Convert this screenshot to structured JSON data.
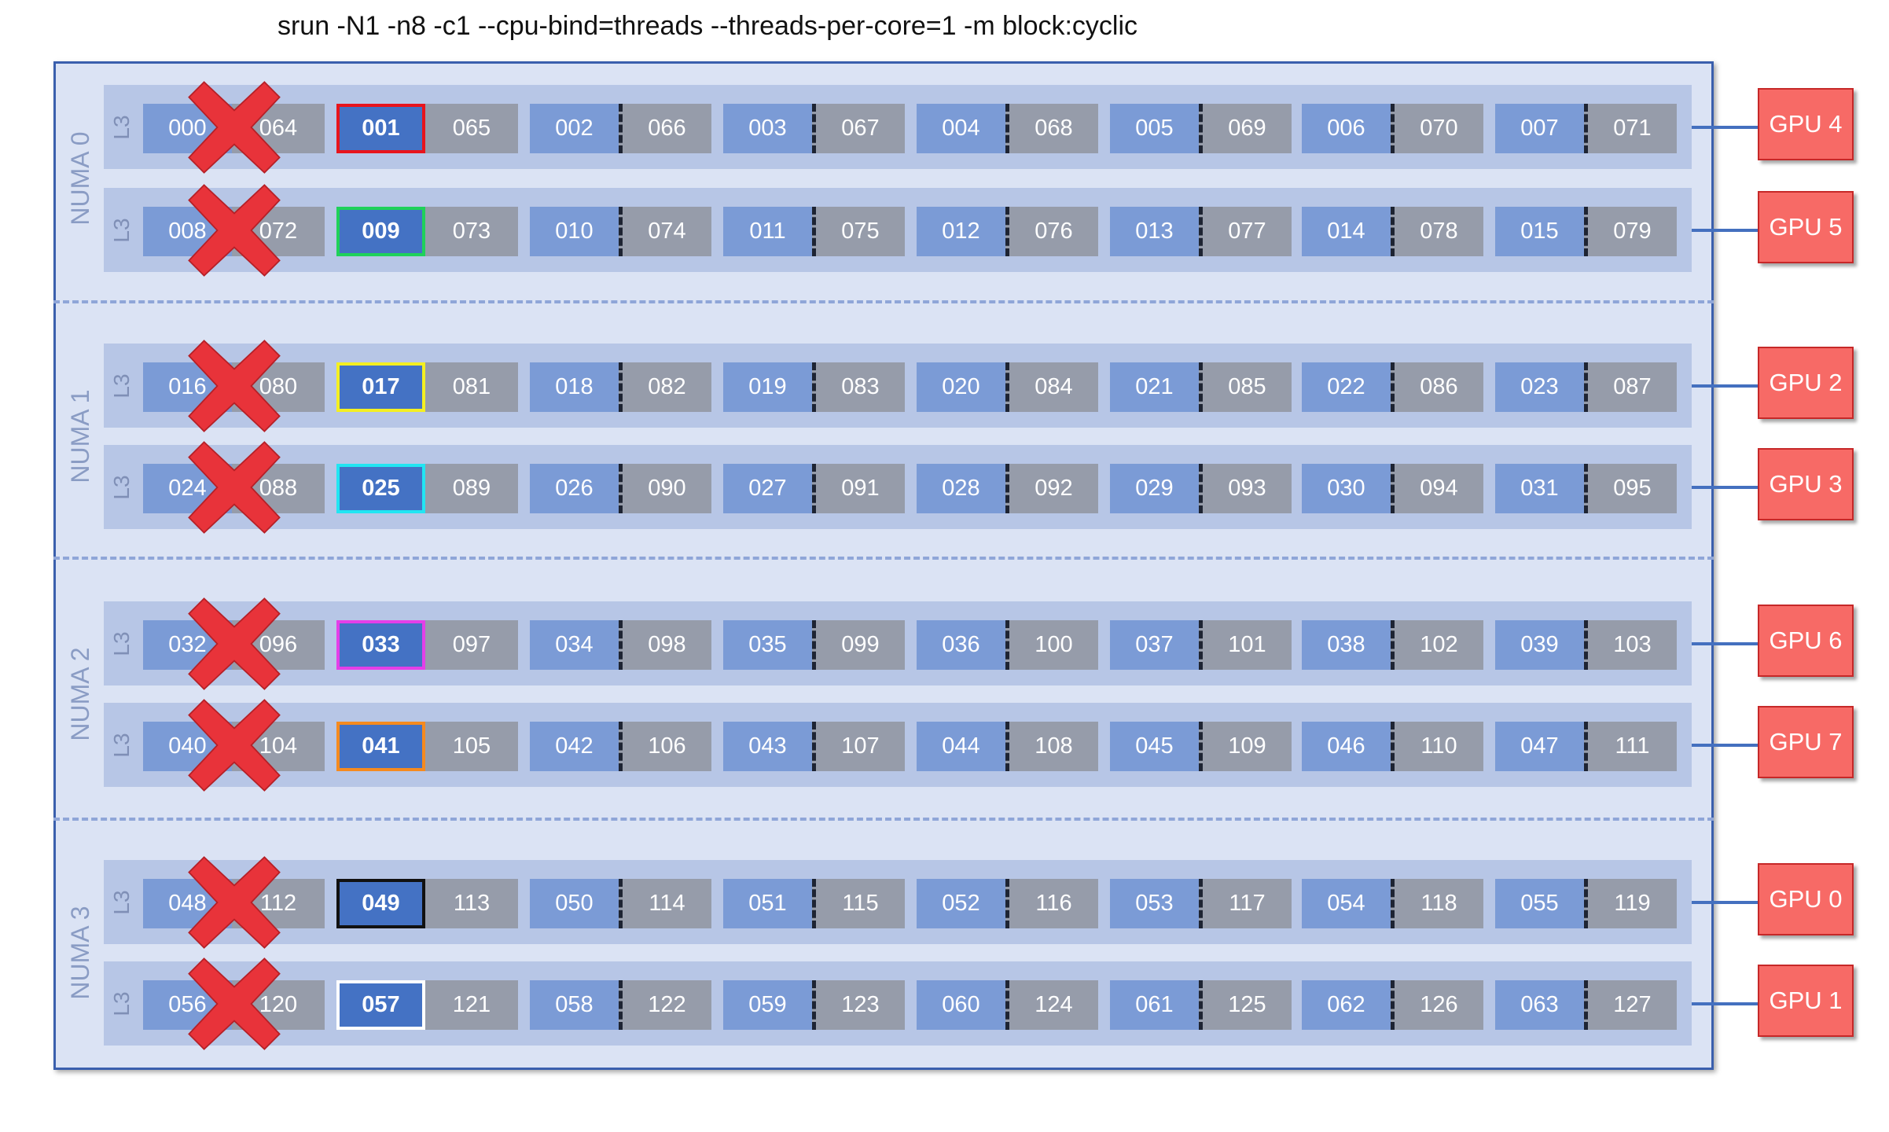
{
  "title": "srun -N1 -n8 -c1 --cpu-bind=threads --threads-per-core=1 -m block:cyclic",
  "l3_label": "L3",
  "numa_domains": [
    {
      "label": "NUMA 0",
      "l3_rows": [
        {
          "gpu": "GPU 4",
          "selected_color": "#e8141c",
          "cores": [
            [
              "000",
              "064"
            ],
            [
              "001",
              "065"
            ],
            [
              "002",
              "066"
            ],
            [
              "003",
              "067"
            ],
            [
              "004",
              "068"
            ],
            [
              "005",
              "069"
            ],
            [
              "006",
              "070"
            ],
            [
              "007",
              "071"
            ]
          ]
        },
        {
          "gpu": "GPU 5",
          "selected_color": "#1fd15a",
          "cores": [
            [
              "008",
              "072"
            ],
            [
              "009",
              "073"
            ],
            [
              "010",
              "074"
            ],
            [
              "011",
              "075"
            ],
            [
              "012",
              "076"
            ],
            [
              "013",
              "077"
            ],
            [
              "014",
              "078"
            ],
            [
              "015",
              "079"
            ]
          ]
        }
      ]
    },
    {
      "label": "NUMA 1",
      "l3_rows": [
        {
          "gpu": "GPU 2",
          "selected_color": "#f4ef21",
          "cores": [
            [
              "016",
              "080"
            ],
            [
              "017",
              "081"
            ],
            [
              "018",
              "082"
            ],
            [
              "019",
              "083"
            ],
            [
              "020",
              "084"
            ],
            [
              "021",
              "085"
            ],
            [
              "022",
              "086"
            ],
            [
              "023",
              "087"
            ]
          ]
        },
        {
          "gpu": "GPU 3",
          "selected_color": "#22e5f2",
          "cores": [
            [
              "024",
              "088"
            ],
            [
              "025",
              "089"
            ],
            [
              "026",
              "090"
            ],
            [
              "027",
              "091"
            ],
            [
              "028",
              "092"
            ],
            [
              "029",
              "093"
            ],
            [
              "030",
              "094"
            ],
            [
              "031",
              "095"
            ]
          ]
        }
      ]
    },
    {
      "label": "NUMA 2",
      "l3_rows": [
        {
          "gpu": "GPU 6",
          "selected_color": "#e43fe8",
          "cores": [
            [
              "032",
              "096"
            ],
            [
              "033",
              "097"
            ],
            [
              "034",
              "098"
            ],
            [
              "035",
              "099"
            ],
            [
              "036",
              "100"
            ],
            [
              "037",
              "101"
            ],
            [
              "038",
              "102"
            ],
            [
              "039",
              "103"
            ]
          ]
        },
        {
          "gpu": "GPU 7",
          "selected_color": "#f58a1f",
          "cores": [
            [
              "040",
              "104"
            ],
            [
              "041",
              "105"
            ],
            [
              "042",
              "106"
            ],
            [
              "043",
              "107"
            ],
            [
              "044",
              "108"
            ],
            [
              "045",
              "109"
            ],
            [
              "046",
              "110"
            ],
            [
              "047",
              "111"
            ]
          ]
        }
      ]
    },
    {
      "label": "NUMA 3",
      "l3_rows": [
        {
          "gpu": "GPU 0",
          "selected_color": "#111111",
          "cores": [
            [
              "048",
              "112"
            ],
            [
              "049",
              "113"
            ],
            [
              "050",
              "114"
            ],
            [
              "051",
              "115"
            ],
            [
              "052",
              "116"
            ],
            [
              "053",
              "117"
            ],
            [
              "054",
              "118"
            ],
            [
              "055",
              "119"
            ]
          ]
        },
        {
          "gpu": "GPU 1",
          "selected_color": "#ffffff",
          "cores": [
            [
              "056",
              "120"
            ],
            [
              "057",
              "121"
            ],
            [
              "058",
              "122"
            ],
            [
              "059",
              "123"
            ],
            [
              "060",
              "124"
            ],
            [
              "061",
              "125"
            ],
            [
              "062",
              "126"
            ],
            [
              "063",
              "127"
            ]
          ]
        }
      ]
    }
  ],
  "reserved_core_index": 0,
  "selected_core_index": 1,
  "colors": {
    "node_bg": "#dbe3f4",
    "l3_bg": "#b7c6e6",
    "thread0": "#7b9bd6",
    "thread1": "#969caa",
    "selected_thread": "#4472c4",
    "gpu": "#f76a66",
    "x_mark": "#e8333a"
  }
}
